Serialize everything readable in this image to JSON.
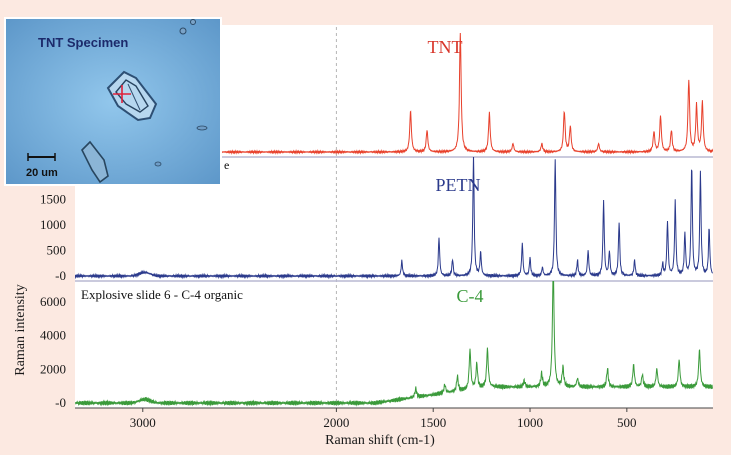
{
  "chart_data": [
    {
      "type": "line",
      "title": "",
      "series": [
        {
          "name": "TNT",
          "color": "#e8412c"
        }
      ],
      "x_range": [
        3350,
        55
      ],
      "peaks_cm1": [
        1617,
        1532,
        1360,
        1210,
        1088,
        939,
        823,
        792,
        646,
        360,
        326,
        270,
        180,
        140,
        110
      ],
      "yticks": [],
      "label_color": "#d8352a"
    },
    {
      "type": "line",
      "title": "",
      "series": [
        {
          "name": "PETN",
          "color": "#2b3a8c"
        }
      ],
      "x_range": [
        3350,
        55
      ],
      "peaks_cm1": [
        1662,
        1470,
        1400,
        1292,
        1255,
        1040,
        1000,
        936,
        870,
        755,
        700,
        620,
        590,
        540,
        460,
        315,
        290,
        250,
        200,
        165,
        120,
        75
      ],
      "yticks": [
        0,
        500,
        1000,
        1500
      ],
      "ylim": [
        -60,
        2350
      ],
      "label_color": "#2b3a8c"
    },
    {
      "type": "line",
      "title": "Explosive slide 6 - C-4 organic",
      "series": [
        {
          "name": "C-4",
          "color": "#3a9a3a"
        }
      ],
      "x_range": [
        3350,
        55
      ],
      "peaks_cm1": [
        1590,
        1440,
        1375,
        1310,
        1275,
        1220,
        1030,
        940,
        880,
        830,
        755,
        600,
        465,
        420,
        345,
        230,
        125
      ],
      "yticks": [
        0,
        2000,
        4000,
        6000
      ],
      "ylim": [
        -350,
        7300
      ],
      "label_color": "#3a9a3a"
    }
  ],
  "axes": {
    "xlabel": "Raman shift (cm-1)",
    "ylabel": "Raman intensity",
    "xticks": [
      {
        "value": 3000,
        "label": "3000"
      },
      {
        "value": 2000,
        "label": "2000"
      },
      {
        "value": 1500,
        "label": "1500"
      },
      {
        "value": 1000,
        "label": "1000"
      },
      {
        "value": 500,
        "label": "500"
      }
    ],
    "reference_line_cm1": 2000
  },
  "inset": {
    "title": "TNT Specimen",
    "scale_label": "20 um",
    "partial_label": "e"
  },
  "tick_zero_label": "-0"
}
